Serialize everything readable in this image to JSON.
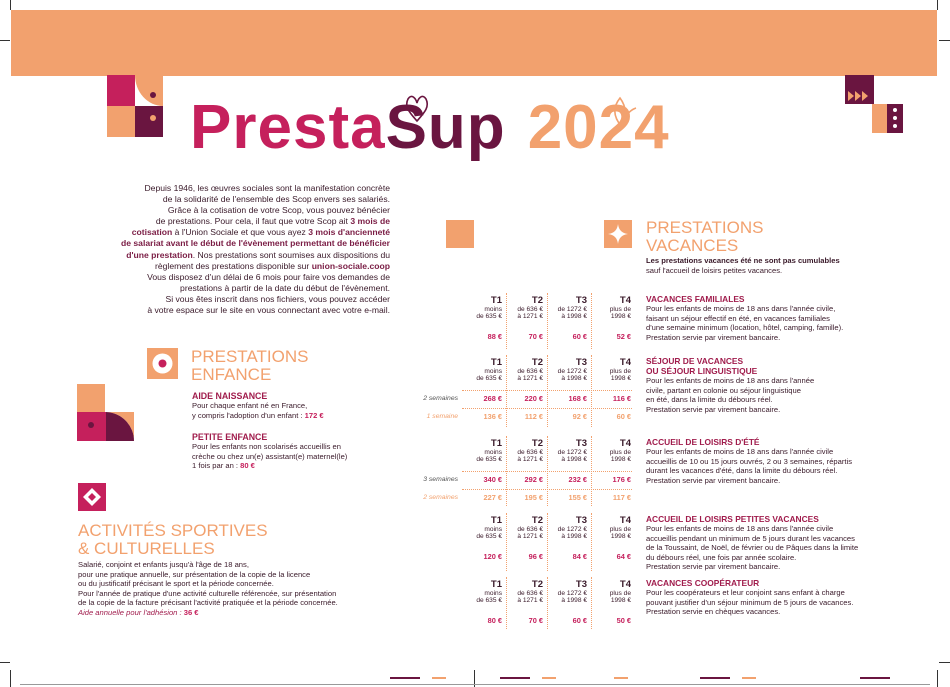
{
  "header": {
    "title_part1": "Presta",
    "title_part2": "Sup",
    "year": "2024"
  },
  "intro": {
    "l1": "Depuis 1946, les œuvres sociales sont la manifestation concrète",
    "l2": "de la solidarité de l'ensemble des Scop envers ses salariés.",
    "l3": "Grâce à la cotisation de votre Scop, vous pouvez bénécier",
    "l4a": "de prestations. Pour cela, il faut que votre Scop ait ",
    "l4b": "3 mois de",
    "l5a": "cotisation",
    "l5b": " à l'Union Sociale et que vous ayez ",
    "l5c": "3 mois d'ancienneté",
    "l6": "de salariat avant le début de l'évènement permettant de bénéficier",
    "l7a": "d'une prestation",
    "l7b": ". Nos prestations sont soumises aux dispositions du",
    "l8a": "règlement des prestations disponible sur ",
    "l8b": "union-sociale.coop",
    "l9": "Vous disposez d'un délai de 6 mois pour faire vos demandes de",
    "l10": "prestations à partir de la date du début de l'évènement.",
    "l11": "Si vous êtes inscrit dans nos fichiers, vous pouvez accéder",
    "l12": "à votre espace sur le site en vous connectant avec votre e-mail."
  },
  "enfance": {
    "head1": "PRESTATIONS",
    "head2": "ENFANCE",
    "aide_title": "AIDE NAISSANCE",
    "aide_l1": "Pour chaque enfant né en France,",
    "aide_l2": "y compris l'adoption d'un enfant : ",
    "aide_price": "172 €",
    "petite_title": "PETITE ENFANCE",
    "petite_l1": "Pour les enfants non scolarisés accueillis en",
    "petite_l2": "crèche ou chez un(e) assistant(e) maternel(le)",
    "petite_l3": "1 fois par an : ",
    "petite_price": "80 €"
  },
  "sport": {
    "head1": "ACTIVITÉS SPORTIVES",
    "head2": "& CULTURELLES",
    "l1": "Salarié, conjoint et enfants jusqu'à l'âge de 18 ans,",
    "l2": "pour une pratique annuelle, sur présentation de la copie de la licence",
    "l3": "ou du justificatif précisant le sport et la période concernée.",
    "l4": "Pour l'année de pratique d'une activité culturelle référencée, sur présentation",
    "l5": "de la copie de la facture précisant l'activité pratiquée et la période concernée.",
    "l6a": "Aide annuelle pour l'adhésion : ",
    "l6b": "36 €"
  },
  "vacances": {
    "head1": "PRESTATIONS",
    "head2": "VACANCES",
    "note1": "Les prestations vacances été ne sont pas cumulables",
    "note2": "sauf l'accueil de loisirs petites vacances."
  },
  "tiers": [
    {
      "name": "T1",
      "l1": "moins",
      "l2": "de 635 €"
    },
    {
      "name": "T2",
      "l1": "de 636 €",
      "l2": "à 1271 €"
    },
    {
      "name": "T3",
      "l1": "de 1272 €",
      "l2": "à 1998 €"
    },
    {
      "name": "T4",
      "l1": "plus de",
      "l2": "1998 €"
    }
  ],
  "rows_labels": {
    "two_weeks": "2 semaines",
    "one_week": "1 semaine",
    "three_weeks": "3 semaines"
  },
  "blocks": [
    {
      "title1": "VACANCES FAMILIALES",
      "title2": "",
      "text": [
        "Pour les enfants de moins de 18 ans dans l'année civile,",
        "faisant un séjour effectif en été, en vacances familiales",
        "d'une semaine minimum (location, hôtel, camping, famille).",
        "Prestation servie par virement bancaire."
      ],
      "values": [
        [
          "88 €",
          "70 €",
          "60 €",
          "52 €"
        ]
      ]
    },
    {
      "title1": "SÉJOUR DE VACANCES",
      "title2": "OU SÉJOUR LINGUISTIQUE",
      "text": [
        "Pour les enfants de moins de 18 ans dans l'année",
        "civile, partant en colonie ou séjour linguistique",
        "en été, dans la limite du débours réel.",
        "Prestation servie par virement bancaire."
      ],
      "values": [
        [
          "268 €",
          "220 €",
          "168 €",
          "116 €"
        ],
        [
          "136 €",
          "112 €",
          "92 €",
          "60 €"
        ]
      ]
    },
    {
      "title1": "ACCUEIL DE LOISIRS D'ÉTÉ",
      "title2": "",
      "text": [
        "Pour les enfants de moins de 18 ans dans l'année civile",
        "accueillis de 10 ou 15 jours ouvrés, 2 ou 3 semaines, répartis",
        "durant les vacances d'été, dans la limite du débours réel.",
        "Prestation servie par virement bancaire."
      ],
      "values": [
        [
          "340 €",
          "292 €",
          "232 €",
          "176 €"
        ],
        [
          "227 €",
          "195 €",
          "155 €",
          "117 €"
        ]
      ]
    },
    {
      "title1": "ACCUEIL DE LOISIRS PETITES VACANCES",
      "title2": "",
      "text": [
        "Pour les enfants de moins de 18 ans dans l'année civile",
        "accueillis pendant un minimum de 5 jours durant les vacances",
        "de la Toussaint, de Noël, de février ou de Pâques dans la limite",
        "du débours réel, une fois par année scolaire.",
        "Prestation servie par virement bancaire."
      ],
      "values": [
        [
          "120 €",
          "96 €",
          "84 €",
          "64 €"
        ]
      ]
    },
    {
      "title1": "VACANCES COOPÉRATEUR",
      "title2": "",
      "text": [
        "Pour les coopérateurs et leur conjoint sans enfant à charge",
        "pouvant justifier d'un séjour minimum de 5 jours de vacances.",
        "Prestation servie en chèques vacances."
      ],
      "values": [
        [
          "80 €",
          "70 €",
          "60 €",
          "50 €"
        ]
      ]
    }
  ],
  "colors": {
    "orange": "#f2a16e",
    "magenta": "#c5205c",
    "plum": "#6a1540"
  }
}
